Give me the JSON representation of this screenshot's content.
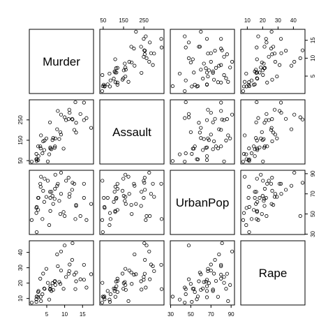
{
  "chart_data": {
    "type": "scatter",
    "kind": "scatterplot-matrix",
    "title": "",
    "variables": [
      "Murder",
      "Assault",
      "UrbanPop",
      "Rape"
    ],
    "ranges": {
      "Murder": [
        0.8,
        17.4
      ],
      "Assault": [
        45,
        337
      ],
      "UrbanPop": [
        32,
        91
      ],
      "Rape": [
        7.3,
        46
      ]
    },
    "ticks": {
      "Murder": [
        5,
        10,
        15
      ],
      "Assault": [
        50,
        150,
        250
      ],
      "UrbanPop": [
        30,
        50,
        70,
        90
      ],
      "Rape": [
        10,
        20,
        30,
        40
      ]
    },
    "tick_labels": {
      "top": [
        "50",
        "150",
        "250",
        "10",
        "20",
        "30",
        "40"
      ],
      "bottom": [
        "5",
        "10",
        "15",
        "30",
        "50",
        "70",
        "90"
      ],
      "left": [
        "250",
        "150",
        "50",
        "40",
        "30",
        "20",
        "10"
      ],
      "right": [
        "15",
        "10",
        "5",
        "90",
        "70",
        "50",
        "30"
      ]
    },
    "grid": false,
    "legend": "none",
    "point_symbol": "open-circle",
    "data": {
      "Murder": [
        13.2,
        10.0,
        8.1,
        8.8,
        9.0,
        7.9,
        3.3,
        5.9,
        15.4,
        17.4,
        5.3,
        2.6,
        10.4,
        7.2,
        2.2,
        6.0,
        9.7,
        15.4,
        2.1,
        11.3,
        4.4,
        12.1,
        2.7,
        16.1,
        9.0,
        6.0,
        4.3,
        12.2,
        2.1,
        7.4,
        11.4,
        11.1,
        13.0,
        0.8,
        7.3,
        6.6,
        4.9,
        6.3,
        3.4,
        14.4,
        3.8,
        13.2,
        12.7,
        3.2,
        2.2,
        8.5,
        4.0,
        5.7,
        2.6,
        6.8
      ],
      "Assault": [
        236,
        263,
        294,
        190,
        276,
        204,
        110,
        238,
        335,
        211,
        46,
        120,
        249,
        113,
        56,
        115,
        109,
        249,
        83,
        300,
        149,
        255,
        72,
        259,
        178,
        109,
        102,
        252,
        57,
        159,
        285,
        254,
        337,
        45,
        120,
        151,
        159,
        106,
        174,
        279,
        86,
        188,
        201,
        120,
        48,
        156,
        145,
        81,
        53,
        161
      ],
      "UrbanPop": [
        58,
        48,
        80,
        50,
        91,
        78,
        77,
        72,
        80,
        60,
        83,
        54,
        83,
        65,
        57,
        66,
        52,
        66,
        51,
        67,
        85,
        74,
        66,
        44,
        70,
        53,
        62,
        81,
        56,
        89,
        70,
        86,
        45,
        44,
        75,
        68,
        67,
        72,
        87,
        48,
        45,
        59,
        80,
        80,
        32,
        63,
        73,
        39,
        66,
        60
      ],
      "Rape": [
        21.2,
        44.5,
        31.0,
        19.5,
        40.6,
        38.7,
        11.1,
        15.8,
        31.9,
        25.8,
        20.2,
        14.2,
        24.0,
        21.0,
        11.3,
        18.0,
        16.3,
        22.2,
        7.8,
        27.8,
        16.3,
        35.1,
        14.9,
        17.1,
        28.2,
        16.4,
        16.5,
        46.0,
        9.5,
        18.8,
        32.1,
        26.1,
        16.1,
        7.3,
        21.4,
        20.0,
        29.3,
        14.9,
        8.3,
        22.5,
        12.8,
        26.9,
        25.5,
        22.9,
        11.2,
        20.7,
        26.2,
        9.3,
        10.8,
        15.6
      ]
    }
  }
}
